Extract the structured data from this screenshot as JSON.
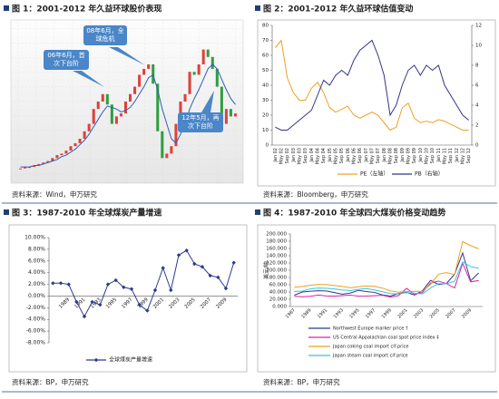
{
  "chart_data": [
    {
      "type": "stock",
      "title": "图 1：2001-2012 年久益环球股价表现",
      "source": "资料来源：Wind，申万研究",
      "ylim": [
        0,
        100
      ],
      "colors": {
        "up": "#e0403a",
        "down": "#2e9e3e",
        "average": "#2c5fb8"
      },
      "values": [
        5,
        6,
        6,
        7,
        8,
        9,
        10,
        12,
        14,
        15,
        17,
        20,
        22,
        25,
        30,
        35,
        45,
        50,
        55,
        48,
        35,
        40,
        42,
        50,
        55,
        60,
        68,
        72,
        75,
        62,
        30,
        12,
        15,
        20,
        35,
        50,
        55,
        70,
        68,
        75,
        85,
        80,
        72,
        60,
        35,
        45,
        40,
        42
      ],
      "average": [
        6,
        6,
        6,
        7,
        7,
        8,
        9,
        10,
        11,
        13,
        14,
        16,
        18,
        21,
        24,
        28,
        33,
        38,
        43,
        47,
        46,
        45,
        43,
        44,
        46,
        50,
        55,
        60,
        66,
        68,
        58,
        45,
        35,
        25,
        22,
        28,
        35,
        45,
        52,
        58,
        65,
        72,
        75,
        72,
        65,
        58,
        52,
        48
      ],
      "annotations": [
        {
          "text": "08年6月，全球危机"
        },
        {
          "text": "06年6月，首次下台阶"
        },
        {
          "text": "12年5月，再次下台阶"
        }
      ]
    },
    {
      "type": "line",
      "title": "图 2：2001-2012 年久益环球估值变动",
      "source": "资料来源：Bloomberg，申万研究",
      "categories": [
        "Jan 02",
        "May 02",
        "Sep 02",
        "Jan 03",
        "May 03",
        "Sep 03",
        "Jan 04",
        "May 04",
        "Sep 04",
        "Jan 05",
        "May 05",
        "Sep 05",
        "Jan 06",
        "May 06",
        "Sep 06",
        "Jan 07",
        "May 07",
        "Sep 07",
        "Jan 08",
        "May 08",
        "Sep 08",
        "Jan 09",
        "May 09",
        "Sep 09",
        "Jan 10",
        "May 10",
        "Sep 10",
        "Jan 11",
        "May 11",
        "Sep 11",
        "Jan 12",
        "May 12",
        "Sep 12"
      ],
      "ylim": [
        0,
        80
      ],
      "yticks": [
        0,
        10,
        20,
        30,
        40,
        50,
        60,
        70,
        80
      ],
      "y2lim": [
        0,
        12
      ],
      "y2ticks": [
        0,
        2,
        4,
        6,
        8,
        10,
        12
      ],
      "series": [
        {
          "name": "PE（左轴）",
          "color": "#f0a020",
          "values": [
            65,
            70,
            45,
            35,
            30,
            30,
            38,
            42,
            35,
            25,
            22,
            24,
            26,
            20,
            18,
            20,
            22,
            20,
            15,
            10,
            12,
            25,
            28,
            18,
            15,
            16,
            15,
            17,
            16,
            14,
            12,
            10,
            10
          ]
        },
        {
          "name": "PB（右轴）",
          "color": "#33348a",
          "axis": "y2",
          "values": [
            1.8,
            1.5,
            1.5,
            2.0,
            2.5,
            3.0,
            3.5,
            5.0,
            6.5,
            6.0,
            7.0,
            7.5,
            7.0,
            8.5,
            9.5,
            10.0,
            10.5,
            9.0,
            7.0,
            3.0,
            4.0,
            6.0,
            7.5,
            8.0,
            7.0,
            8.0,
            7.5,
            8.0,
            6.0,
            5.0,
            4.0,
            3.0,
            2.5
          ]
        }
      ]
    },
    {
      "type": "line",
      "title": "图 3：1987-2010 年全球煤炭产量增速",
      "source": "资料来源：BP，申万研究",
      "categories": [
        null,
        null,
        "1989",
        null,
        "1991",
        null,
        "1993",
        null,
        "1995",
        null,
        "1997",
        null,
        "1999",
        null,
        "2001",
        null,
        "2003",
        null,
        "2005",
        null,
        "2007",
        null,
        "2009",
        null
      ],
      "ylim": [
        -8,
        10
      ],
      "yticks": [
        {
          "value": 10,
          "label": "10.00%"
        },
        {
          "value": 8,
          "label": "8.00%"
        },
        {
          "value": 6,
          "label": "6.00%"
        },
        {
          "value": 4,
          "label": "4.00%"
        },
        {
          "value": 2,
          "label": "2.00%"
        },
        {
          "value": 0,
          "label": "0.00%"
        },
        {
          "value": -2,
          "label": "-2.00%"
        },
        {
          "value": -4,
          "label": "-4.00%"
        },
        {
          "value": -6,
          "label": "-6.00%"
        },
        {
          "value": -8,
          "label": "-8.00%"
        }
      ],
      "marker": "diamond",
      "series": [
        {
          "name": "全球煤炭产量增速",
          "color": "#2e3a8c",
          "values": [
            2.2,
            2.2,
            2.0,
            -1.0,
            -3.5,
            -1.0,
            -1.5,
            2.0,
            2.7,
            1.5,
            1.2,
            -1.5,
            -2.5,
            1.0,
            4.8,
            1.0,
            7.0,
            7.8,
            5.5,
            5.0,
            3.5,
            3.2,
            1.3,
            5.7
          ]
        }
      ]
    },
    {
      "type": "line",
      "title": "图 4：1987-2010 年全球四大煤炭价格变动趋势",
      "source": "资料来源：BP，申万研究",
      "y_label": "美元/吨",
      "categories": [
        "1987",
        null,
        "1989",
        null,
        "1991",
        null,
        "1993",
        null,
        "1995",
        null,
        "1997",
        null,
        "1999",
        null,
        "2001",
        null,
        "2003",
        null,
        "2005",
        null,
        "2007",
        null,
        "2009",
        null
      ],
      "ylim": [
        0,
        200
      ],
      "yticks": [
        {
          "value": 0,
          "label": "0.000"
        },
        {
          "value": 20,
          "label": "20.000"
        },
        {
          "value": 40,
          "label": "40.000"
        },
        {
          "value": 60,
          "label": "60.000"
        },
        {
          "value": 80,
          "label": "80.000"
        },
        {
          "value": 100,
          "label": "100.000"
        },
        {
          "value": 120,
          "label": "120.000"
        },
        {
          "value": 140,
          "label": "140.000"
        },
        {
          "value": 160,
          "label": "160.000"
        },
        {
          "value": 180,
          "label": "180.000"
        },
        {
          "value": 200,
          "label": "200.000"
        }
      ],
      "series": [
        {
          "name": "Northwest Europe marker price †",
          "color": "#2e3a8c",
          "values": [
            31.3,
            39.9,
            42.1,
            43.5,
            42.8,
            38.5,
            33.7,
            37.2,
            44.5,
            41.3,
            38.9,
            32.0,
            28.8,
            36.0,
            39.0,
            31.7,
            43.6,
            72.1,
            60.5,
            64.1,
            88.8,
            147.7,
            70.7,
            92.5
          ]
        },
        {
          "name": "US Central Appalachian coal spot price index ‡",
          "color": "#e020a0",
          "values": [
            28.0,
            27.0,
            28.0,
            31.6,
            29.0,
            28.5,
            29.9,
            31.4,
            28.4,
            28.6,
            29.6,
            31.0,
            25.9,
            29.9,
            50.2,
            33.2,
            38.5,
            64.9,
            70.1,
            63.0,
            51.2,
            118.8,
            68.1,
            71.6
          ]
        },
        {
          "name": "Japan coking coal import cif price",
          "color": "#f0a020",
          "values": [
            53.4,
            55.1,
            58.7,
            60.5,
            60.5,
            57.8,
            55.3,
            51.8,
            54.5,
            56.7,
            55.5,
            50.8,
            42.8,
            39.7,
            41.3,
            42.0,
            41.6,
            61.0,
            89.3,
            93.5,
            88.2,
            179.0,
            167.8,
            159.0
          ]
        },
        {
          "name": "Japan steam coal import cif price",
          "color": "#30c8e8",
          "values": [
            41.3,
            42.5,
            48.9,
            50.8,
            50.3,
            48.5,
            45.7,
            43.7,
            47.6,
            49.5,
            45.5,
            40.5,
            35.7,
            34.6,
            38.0,
            36.9,
            34.7,
            51.3,
            62.9,
            63.0,
            69.9,
            122.8,
            110.1,
            105.2
          ]
        }
      ]
    }
  ]
}
